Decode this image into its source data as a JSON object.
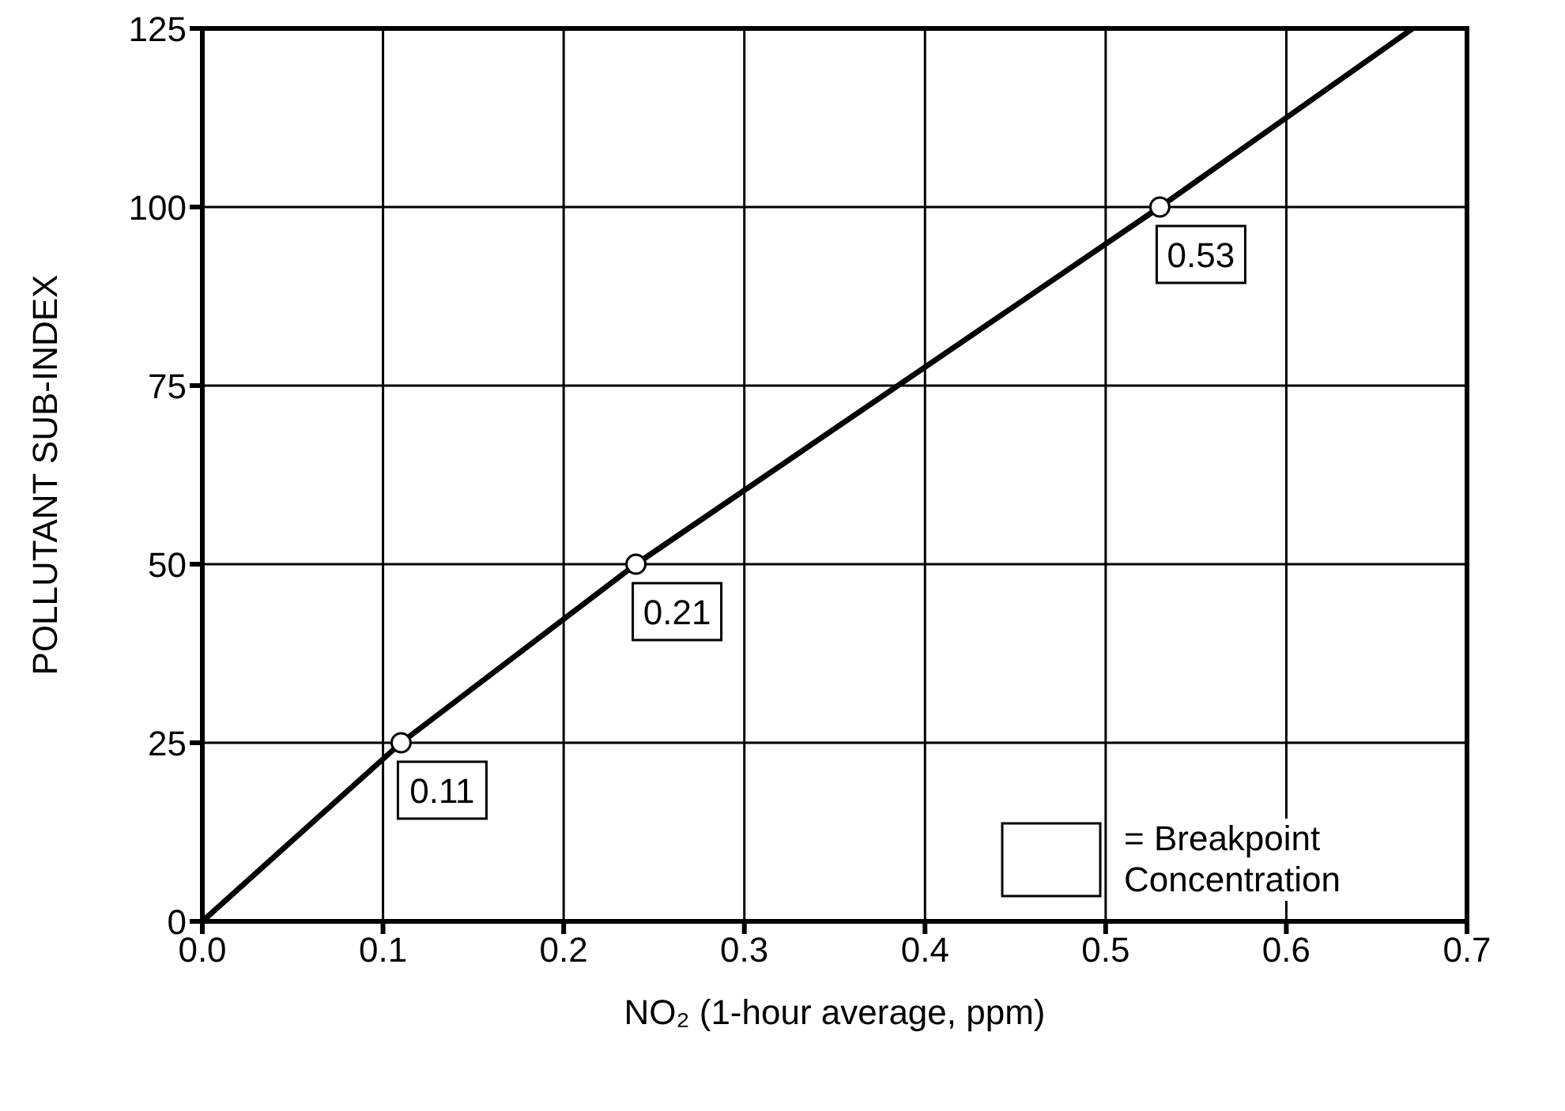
{
  "chart_data": {
    "type": "line",
    "xlabel": "NO₂ (1-hour average, ppm)",
    "ylabel": "POLLUTANT SUB-INDEX",
    "xlim": [
      0,
      0.7
    ],
    "xticks": [
      {
        "value": 0,
        "label": "0.0"
      },
      {
        "value": 0.1,
        "label": "0.1"
      },
      {
        "value": 0.2,
        "label": "0.2"
      },
      {
        "value": 0.3,
        "label": "0.3"
      },
      {
        "value": 0.4,
        "label": "0.4"
      },
      {
        "value": 0.5,
        "label": "0.5"
      },
      {
        "value": 0.6,
        "label": "0.6"
      },
      {
        "value": 0.7,
        "label": "0.7"
      }
    ],
    "ylim": [
      0,
      125
    ],
    "yticks": [
      0,
      25,
      50,
      75,
      100,
      125
    ],
    "grid": true,
    "series": [
      {
        "type": "line",
        "x": [
          0,
          0.11,
          0.24,
          0.53,
          0.67
        ],
        "values": [
          0,
          25,
          50,
          100,
          125
        ],
        "color": "#000000",
        "marker": "none"
      },
      {
        "type": "scatter",
        "x": [
          0.11,
          0.24,
          0.53
        ],
        "values": [
          25,
          50,
          100
        ],
        "color": "#000000",
        "marker": "circle"
      }
    ],
    "annotations": [
      {
        "text": "0.11",
        "x": 0.11,
        "y": 25
      },
      {
        "text": "0.21",
        "x": 0.24,
        "y": 50
      },
      {
        "text": "0.53",
        "x": 0.53,
        "y": 100
      },
      "= Breakpoint Concentration"
    ]
  }
}
